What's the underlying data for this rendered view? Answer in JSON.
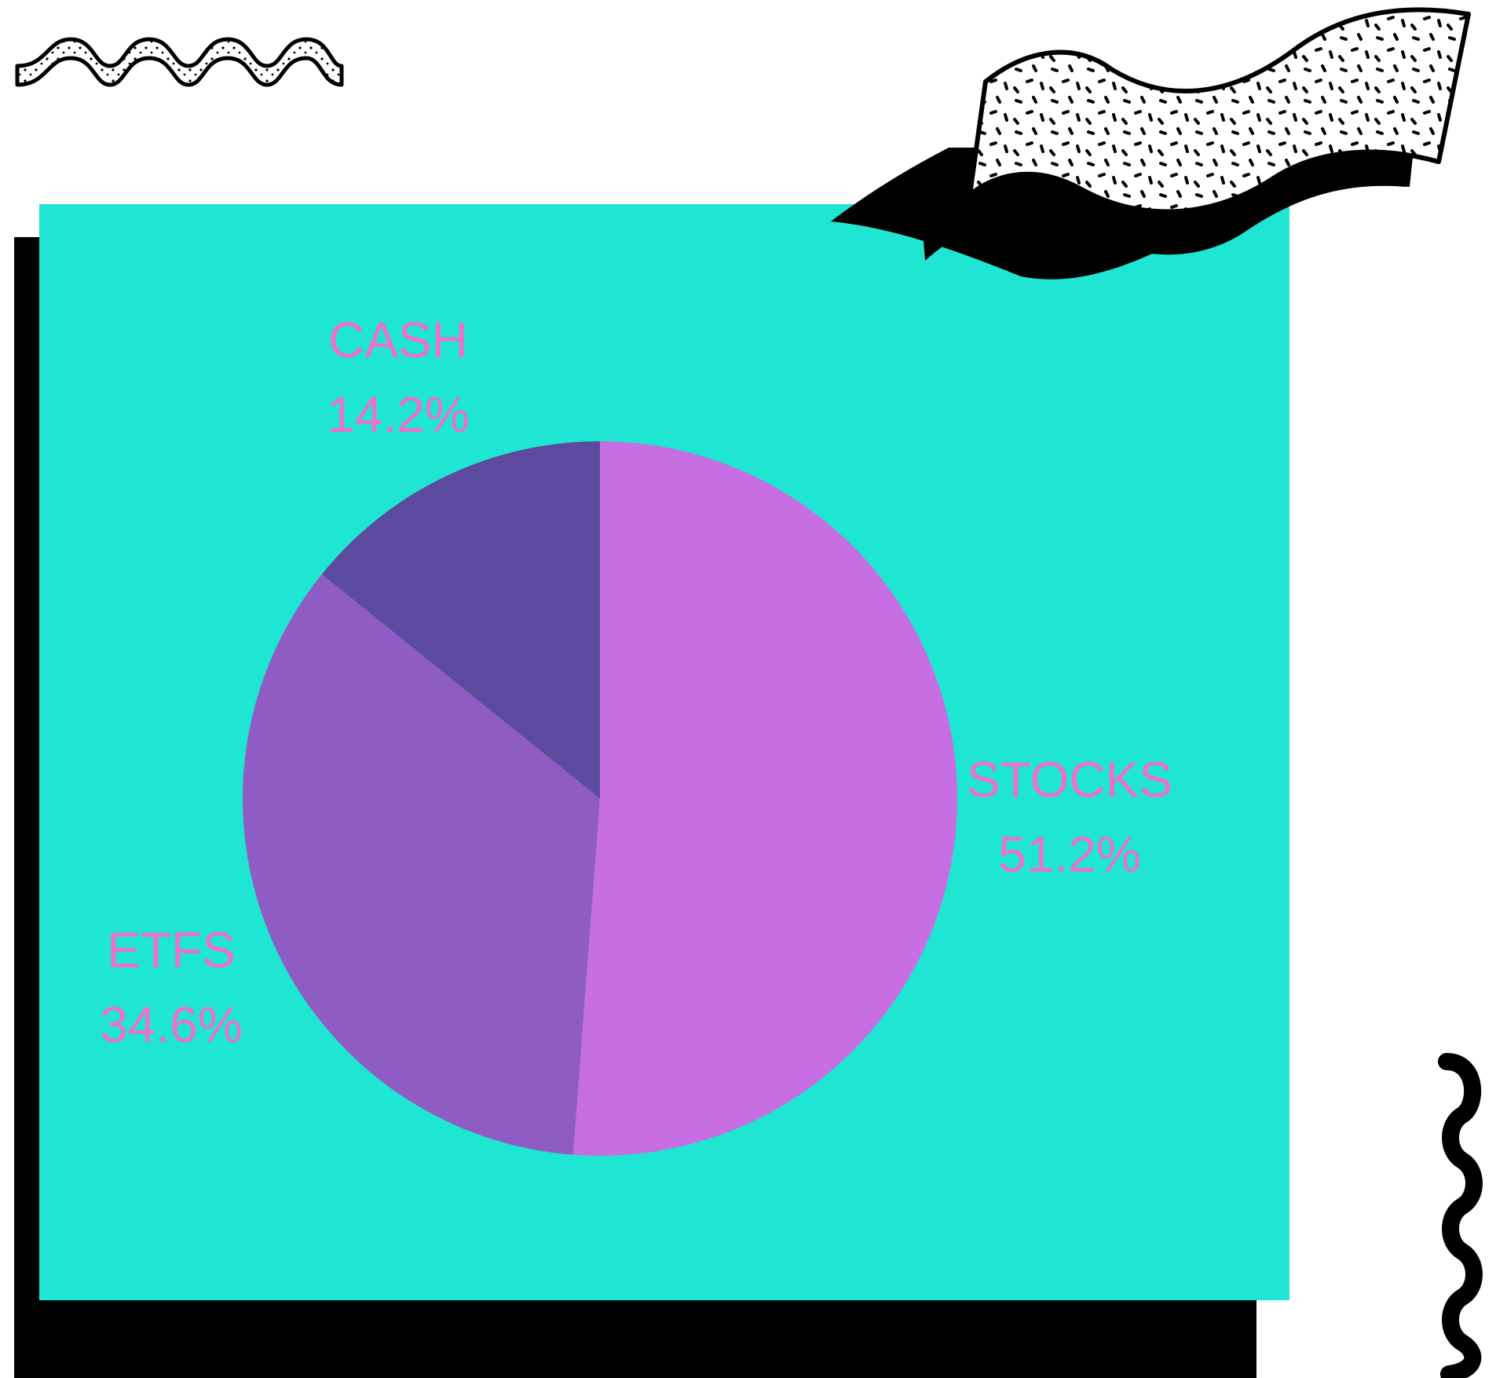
{
  "colors": {
    "background": "#ffffff",
    "panel": "#1ee6d2",
    "shadow": "#000000",
    "label": "#ee6fd0",
    "stocks": "#c76ee3",
    "etfs": "#8f5cc4",
    "cash": "#5c4a9e"
  },
  "decorations": {
    "top_left": "squiggle-dotted-icon",
    "top_right": "dotted-banner-icon",
    "right_edge": "vertical-squiggle-icon"
  },
  "chart_data": {
    "type": "pie",
    "title": "",
    "start_angle_deg": 0,
    "direction": "clockwise",
    "slices": [
      {
        "label": "STOCKS",
        "percent_label": "51.2%",
        "value": 51.2,
        "color": "#c76ee3"
      },
      {
        "label": "ETFS",
        "percent_label": "34.6%",
        "value": 34.6,
        "color": "#8f5cc4"
      },
      {
        "label": "CASH",
        "percent_label": "14.2%",
        "value": 14.2,
        "color": "#5c4a9e"
      }
    ]
  }
}
